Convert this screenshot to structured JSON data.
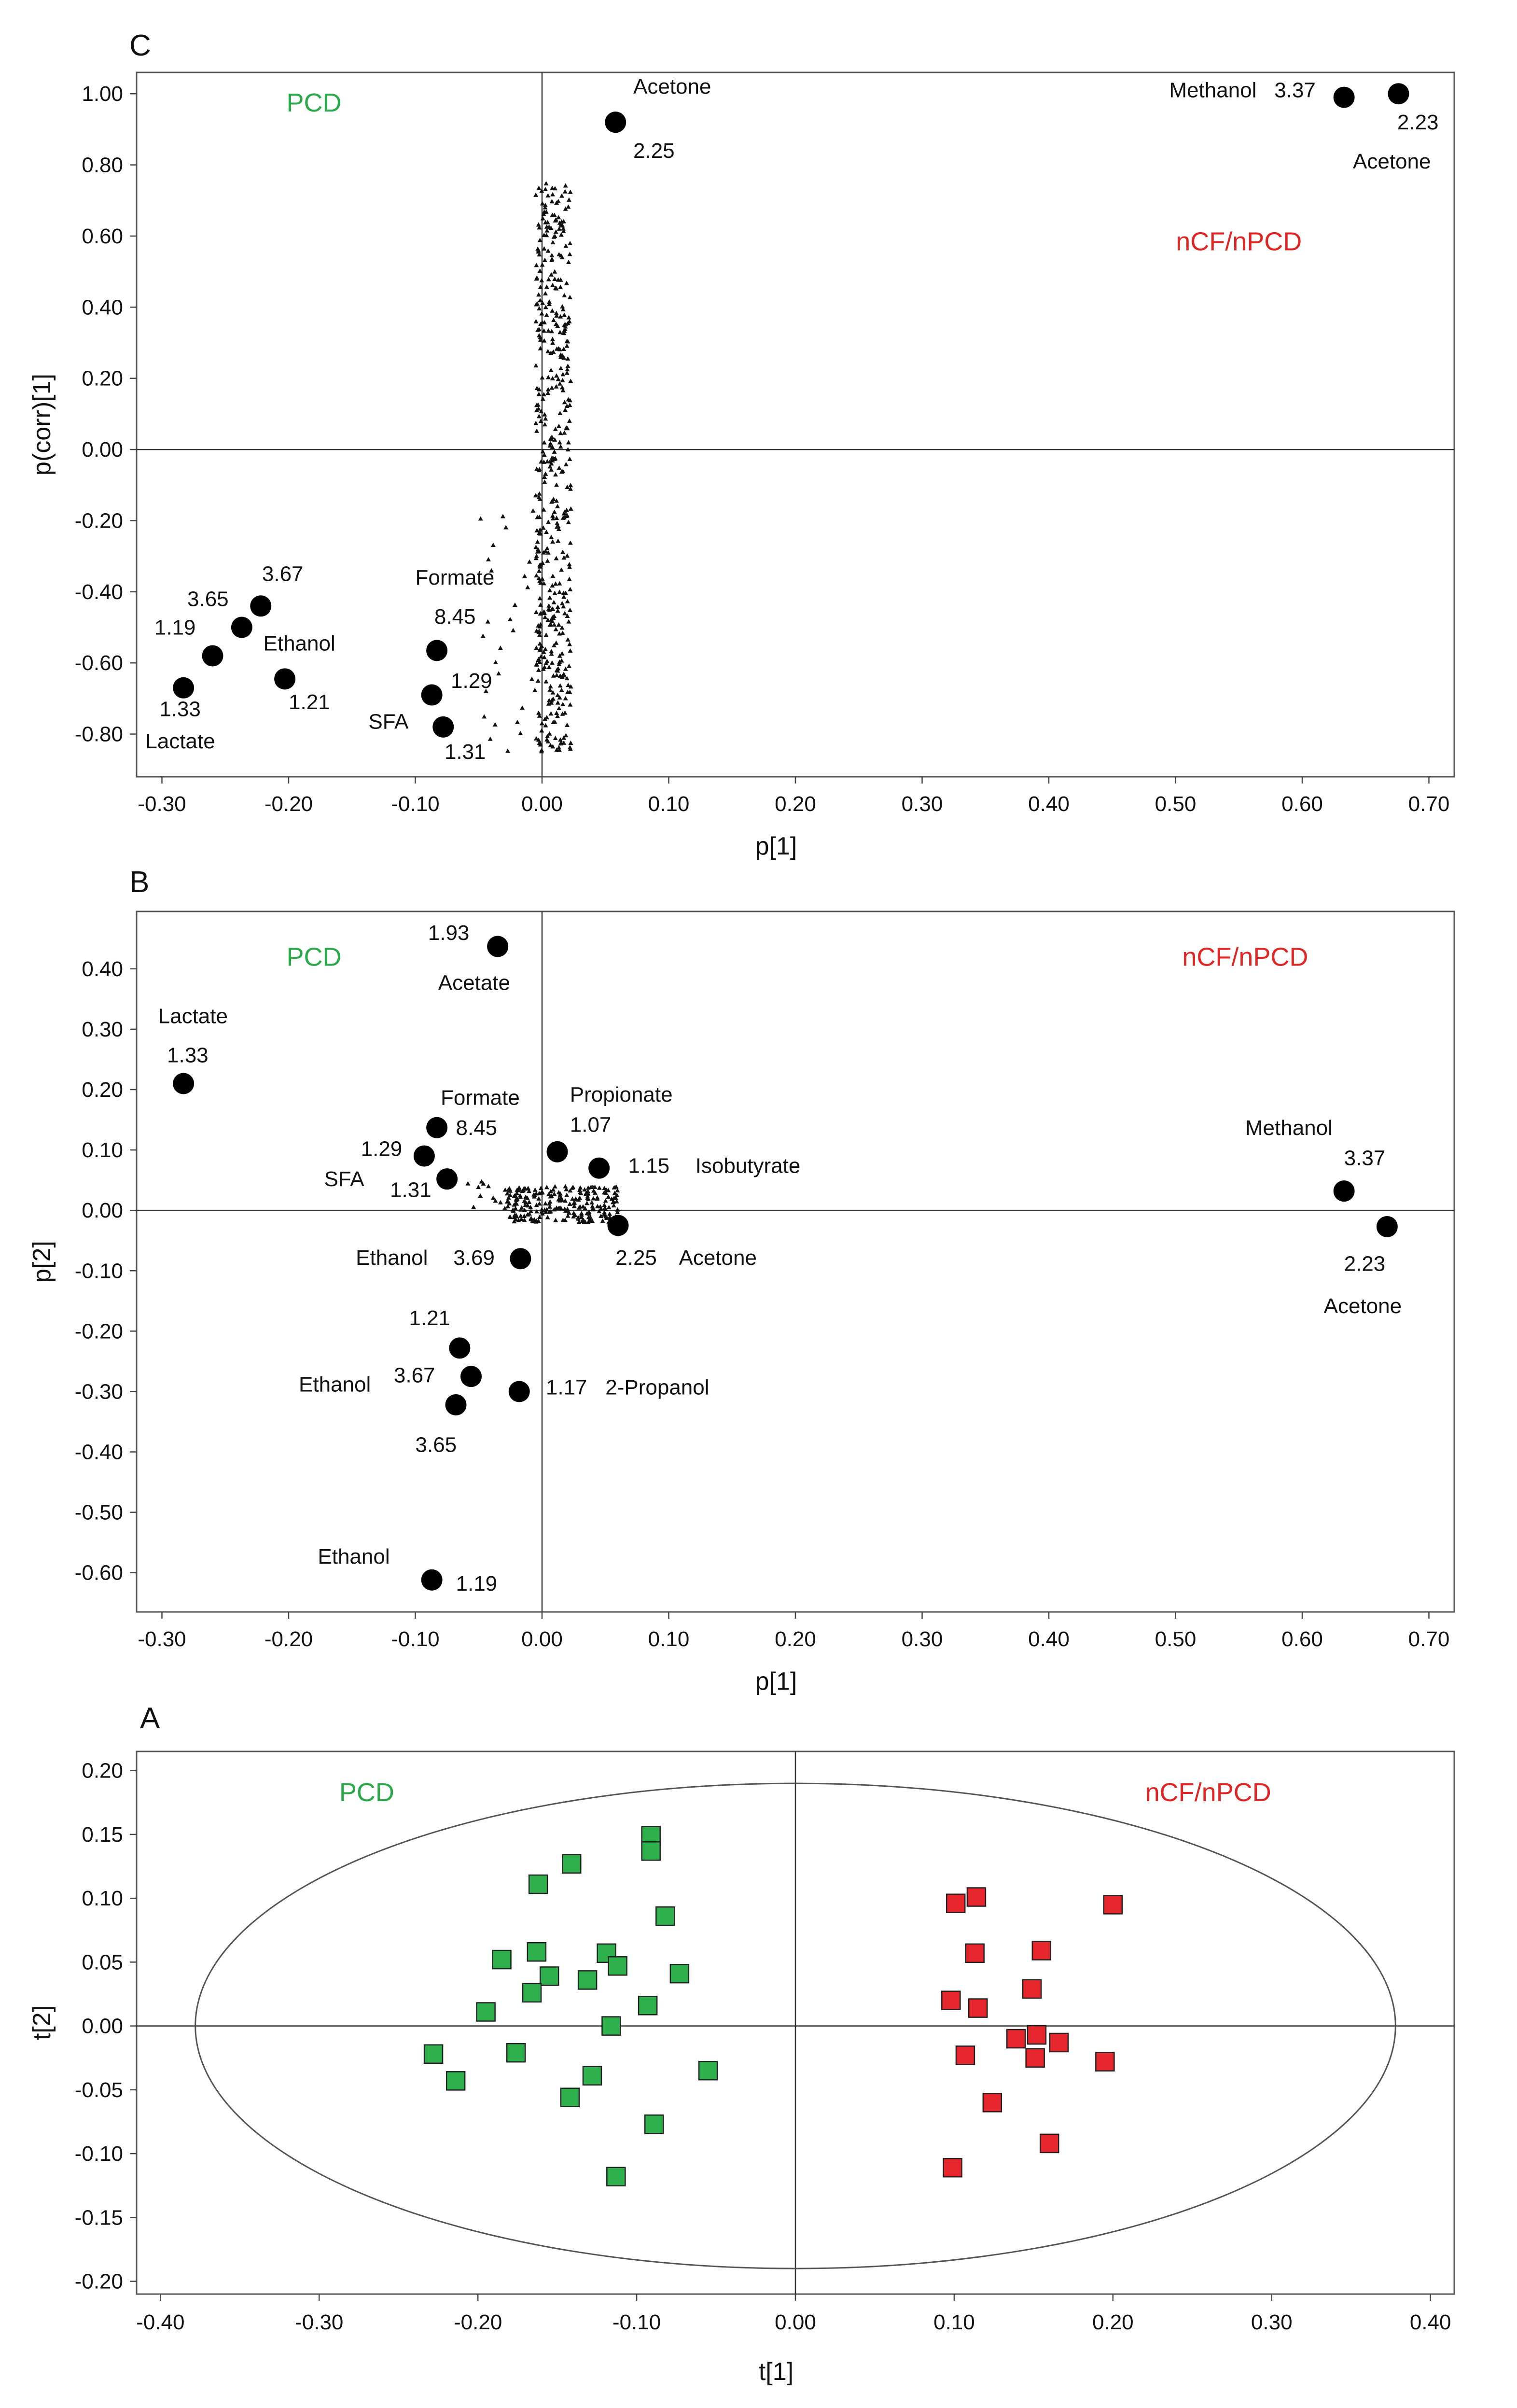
{
  "colors": {
    "pcd": "#2aa84a",
    "ncf": "#e02525",
    "marker": "#000000",
    "sq_pcd": "#2eb04d",
    "sq_ncf": "#e5262c"
  },
  "chart_data": [
    {
      "id": "panelC",
      "letter": "C",
      "type": "scatter",
      "xlabel": "p[1]",
      "ylabel": "p(corr)[1]",
      "xlim": [
        -0.32,
        0.72
      ],
      "ylim": [
        -0.92,
        1.06
      ],
      "xticks": [
        -0.3,
        -0.2,
        -0.1,
        0.0,
        0.1,
        0.2,
        0.3,
        0.4,
        0.5,
        0.6,
        0.7
      ],
      "xtick_labels": [
        "-0.30",
        "-0.20",
        "-0.10",
        "0.00",
        "0.10",
        "0.20",
        "0.30",
        "0.40",
        "0.50",
        "0.60",
        "0.70"
      ],
      "yticks": [
        1.0,
        0.8,
        0.6,
        0.4,
        0.2,
        0.0,
        -0.2,
        -0.4,
        -0.6,
        -0.8
      ],
      "ytick_labels": [
        "1.00",
        "0.80",
        "0.60",
        "0.40",
        "0.20",
        "0.00",
        "-0.20",
        "-0.40",
        "-0.60",
        "-0.80"
      ],
      "group_labels": [
        {
          "text": "PCD",
          "x": -0.18,
          "y": 0.95,
          "color": "pcd"
        },
        {
          "text": "nCF/nPCD",
          "x": 0.55,
          "y": 0.56,
          "color": "ncf"
        }
      ],
      "points": [
        {
          "x": 0.058,
          "y": 0.92
        },
        {
          "x": 0.633,
          "y": 0.99
        },
        {
          "x": 0.676,
          "y": 1.0
        },
        {
          "x": -0.222,
          "y": -0.44
        },
        {
          "x": -0.237,
          "y": -0.5
        },
        {
          "x": -0.26,
          "y": -0.58
        },
        {
          "x": -0.283,
          "y": -0.67
        },
        {
          "x": -0.203,
          "y": -0.645
        },
        {
          "x": -0.083,
          "y": -0.565
        },
        {
          "x": -0.087,
          "y": -0.69
        },
        {
          "x": -0.078,
          "y": -0.78
        }
      ],
      "labels": [
        {
          "text": "Acetone",
          "x": 0.072,
          "y": 1.0
        },
        {
          "text": "2.25",
          "x": 0.072,
          "y": 0.82
        },
        {
          "text": "Methanol",
          "x": 0.495,
          "y": 0.99
        },
        {
          "text": "3.37",
          "x": 0.578,
          "y": 0.99
        },
        {
          "text": "2.23",
          "x": 0.675,
          "y": 0.9
        },
        {
          "text": "Acetone",
          "x": 0.64,
          "y": 0.79
        },
        {
          "text": "3.67",
          "x": -0.221,
          "y": -0.37
        },
        {
          "text": "3.65",
          "x": -0.28,
          "y": -0.44
        },
        {
          "text": "1.19",
          "x": -0.306,
          "y": -0.52
        },
        {
          "text": "Ethanol",
          "x": -0.22,
          "y": -0.565
        },
        {
          "text": "1.21",
          "x": -0.2,
          "y": -0.73
        },
        {
          "text": "1.33",
          "x": -0.302,
          "y": -0.75
        },
        {
          "text": "Lactate",
          "x": -0.313,
          "y": -0.84
        },
        {
          "text": "Formate",
          "x": -0.1,
          "y": -0.38
        },
        {
          "text": "8.45",
          "x": -0.085,
          "y": -0.49
        },
        {
          "text": "1.29",
          "x": -0.072,
          "y": -0.67
        },
        {
          "text": "SFA",
          "x": -0.137,
          "y": -0.785
        },
        {
          "text": "1.31",
          "x": -0.077,
          "y": -0.87
        }
      ]
    },
    {
      "id": "panelB",
      "letter": "B",
      "type": "scatter",
      "xlabel": "p[1]",
      "ylabel": "p[2]",
      "xlim": [
        -0.32,
        0.72
      ],
      "ylim": [
        -0.665,
        0.495
      ],
      "xticks": [
        -0.3,
        -0.2,
        -0.1,
        0.0,
        0.1,
        0.2,
        0.3,
        0.4,
        0.5,
        0.6,
        0.7
      ],
      "xtick_labels": [
        "-0.30",
        "-0.20",
        "-0.10",
        "0.00",
        "0.10",
        "0.20",
        "0.30",
        "0.40",
        "0.50",
        "0.60",
        "0.70"
      ],
      "yticks": [
        0.4,
        0.3,
        0.2,
        0.1,
        0.0,
        -0.1,
        -0.2,
        -0.3,
        -0.4,
        -0.5,
        -0.6
      ],
      "ytick_labels": [
        "0.40",
        "0.30",
        "0.20",
        "0.10",
        "0.00",
        "-0.10",
        "-0.20",
        "-0.30",
        "-0.40",
        "-0.50",
        "-0.60"
      ],
      "group_labels": [
        {
          "text": "PCD",
          "x": -0.18,
          "y": 0.405,
          "color": "pcd"
        },
        {
          "text": "nCF/nPCD",
          "x": 0.555,
          "y": 0.405,
          "color": "ncf"
        }
      ],
      "points": [
        {
          "x": -0.035,
          "y": 0.437
        },
        {
          "x": -0.283,
          "y": 0.21
        },
        {
          "x": -0.083,
          "y": 0.137
        },
        {
          "x": -0.093,
          "y": 0.09
        },
        {
          "x": -0.075,
          "y": 0.052
        },
        {
          "x": 0.012,
          "y": 0.097
        },
        {
          "x": 0.045,
          "y": 0.07
        },
        {
          "x": 0.06,
          "y": -0.025
        },
        {
          "x": -0.017,
          "y": -0.08
        },
        {
          "x": 0.633,
          "y": 0.032
        },
        {
          "x": 0.667,
          "y": -0.027
        },
        {
          "x": -0.065,
          "y": -0.228
        },
        {
          "x": -0.056,
          "y": -0.275
        },
        {
          "x": -0.068,
          "y": -0.322
        },
        {
          "x": -0.018,
          "y": -0.3
        },
        {
          "x": -0.087,
          "y": -0.612
        }
      ],
      "labels": [
        {
          "text": "1.93",
          "x": -0.09,
          "y": 0.448
        },
        {
          "text": "Acetate",
          "x": -0.082,
          "y": 0.365
        },
        {
          "text": "Lactate",
          "x": -0.303,
          "y": 0.31
        },
        {
          "text": "1.33",
          "x": -0.296,
          "y": 0.245
        },
        {
          "text": "Formate",
          "x": -0.08,
          "y": 0.175
        },
        {
          "text": "8.45",
          "x": -0.068,
          "y": 0.125
        },
        {
          "text": "1.29",
          "x": -0.143,
          "y": 0.09
        },
        {
          "text": "SFA",
          "x": -0.172,
          "y": 0.04
        },
        {
          "text": "1.31",
          "x": -0.12,
          "y": 0.022
        },
        {
          "text": "Propionate",
          "x": 0.022,
          "y": 0.18
        },
        {
          "text": "1.07",
          "x": 0.022,
          "y": 0.13
        },
        {
          "text": "1.15",
          "x": 0.068,
          "y": 0.062
        },
        {
          "text": "Isobutyrate",
          "x": 0.121,
          "y": 0.062
        },
        {
          "text": "2.25",
          "x": 0.058,
          "y": -0.09
        },
        {
          "text": "Acetone",
          "x": 0.108,
          "y": -0.09
        },
        {
          "text": "Ethanol",
          "x": -0.147,
          "y": -0.09
        },
        {
          "text": "3.69",
          "x": -0.07,
          "y": -0.09
        },
        {
          "text": "Methanol",
          "x": 0.555,
          "y": 0.125
        },
        {
          "text": "3.37",
          "x": 0.633,
          "y": 0.075
        },
        {
          "text": "2.23",
          "x": 0.633,
          "y": -0.1
        },
        {
          "text": "Acetone",
          "x": 0.617,
          "y": -0.17
        },
        {
          "text": "1.21",
          "x": -0.105,
          "y": -0.19
        },
        {
          "text": "Ethanol",
          "x": -0.192,
          "y": -0.3
        },
        {
          "text": "3.67",
          "x": -0.117,
          "y": -0.285
        },
        {
          "text": "3.65",
          "x": -0.1,
          "y": -0.4
        },
        {
          "text": "1.17",
          "x": 0.003,
          "y": -0.305
        },
        {
          "text": "2-Propanol",
          "x": 0.05,
          "y": -0.305
        },
        {
          "text": "Ethanol",
          "x": -0.177,
          "y": -0.585
        },
        {
          "text": "1.19",
          "x": -0.068,
          "y": -0.63
        }
      ]
    },
    {
      "id": "panelA",
      "letter": "A",
      "type": "scatter",
      "xlabel": "t[1]",
      "ylabel": "t[2]",
      "xlim": [
        -0.415,
        0.415
      ],
      "ylim": [
        -0.21,
        0.215
      ],
      "xticks": [
        -0.4,
        -0.3,
        -0.2,
        -0.1,
        0.0,
        0.1,
        0.2,
        0.3,
        0.4
      ],
      "xtick_labels": [
        "-0.40",
        "-0.30",
        "-0.20",
        "-0.10",
        "0.00",
        "0.10",
        "0.20",
        "0.30",
        "0.40"
      ],
      "yticks": [
        0.2,
        0.15,
        0.1,
        0.05,
        0.0,
        -0.05,
        -0.1,
        -0.15,
        -0.2
      ],
      "ytick_labels": [
        "0.20",
        "0.15",
        "0.10",
        "0.05",
        "0.00",
        "-0.05",
        "-0.10",
        "-0.15",
        "-0.20"
      ],
      "ellipse": {
        "rx": 0.378,
        "ry": 0.19
      },
      "group_labels": [
        {
          "text": "PCD",
          "x": -0.27,
          "y": 0.176,
          "color": "pcd"
        },
        {
          "text": "nCF/nPCD",
          "x": 0.26,
          "y": 0.176,
          "color": "ncf"
        }
      ],
      "series": [
        {
          "name": "PCD",
          "color": "sq_pcd",
          "points": [
            [
              -0.091,
              0.149
            ],
            [
              -0.091,
              0.137
            ],
            [
              -0.141,
              0.127
            ],
            [
              -0.162,
              0.111
            ],
            [
              -0.082,
              0.086
            ],
            [
              -0.185,
              0.052
            ],
            [
              -0.163,
              0.058
            ],
            [
              -0.119,
              0.057
            ],
            [
              -0.112,
              0.047
            ],
            [
              -0.073,
              0.041
            ],
            [
              -0.155,
              0.039
            ],
            [
              -0.131,
              0.036
            ],
            [
              -0.166,
              0.026
            ],
            [
              -0.093,
              0.016
            ],
            [
              -0.195,
              0.011
            ],
            [
              -0.116,
              0.0
            ],
            [
              -0.228,
              -0.022
            ],
            [
              -0.176,
              -0.021
            ],
            [
              -0.055,
              -0.035
            ],
            [
              -0.214,
              -0.043
            ],
            [
              -0.128,
              -0.039
            ],
            [
              -0.142,
              -0.056
            ],
            [
              -0.089,
              -0.077
            ],
            [
              -0.113,
              -0.118
            ]
          ]
        },
        {
          "name": "nCF/nPCD",
          "color": "sq_ncf",
          "points": [
            [
              0.114,
              0.101
            ],
            [
              0.101,
              0.096
            ],
            [
              0.2,
              0.095
            ],
            [
              0.113,
              0.057
            ],
            [
              0.155,
              0.059
            ],
            [
              0.149,
              0.029
            ],
            [
              0.098,
              0.02
            ],
            [
              0.115,
              0.014
            ],
            [
              0.139,
              -0.01
            ],
            [
              0.152,
              -0.007
            ],
            [
              0.166,
              -0.013
            ],
            [
              0.107,
              -0.023
            ],
            [
              0.151,
              -0.025
            ],
            [
              0.195,
              -0.028
            ],
            [
              0.124,
              -0.06
            ],
            [
              0.16,
              -0.092
            ],
            [
              0.099,
              -0.111
            ]
          ]
        }
      ]
    }
  ]
}
